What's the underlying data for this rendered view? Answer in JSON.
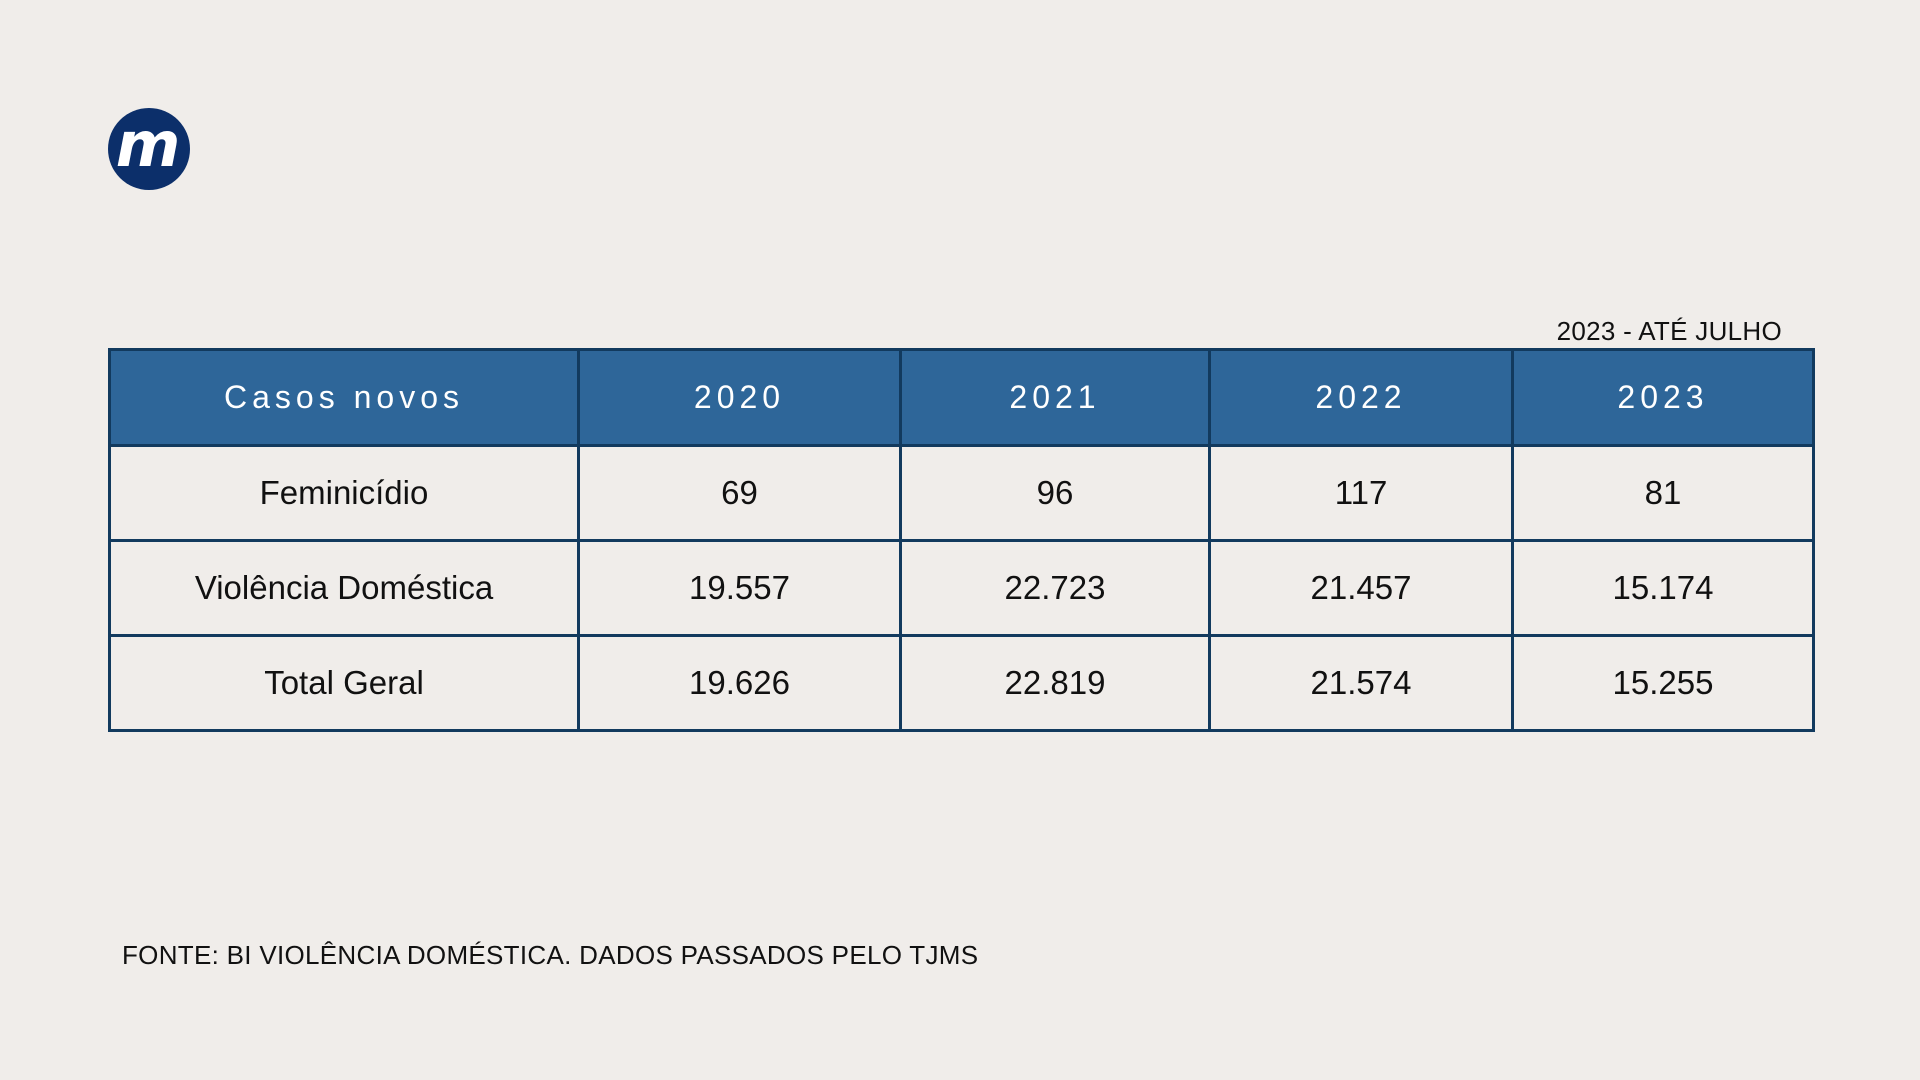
{
  "brand": {
    "logo_letter": "m",
    "logo_color": "#0c2f6a"
  },
  "note": "2023 - ATÉ JULHO",
  "table": {
    "headers": [
      "Casos novos",
      "2020",
      "2021",
      "2022",
      "2023"
    ],
    "rows": [
      {
        "label": "Feminicídio",
        "values": [
          "69",
          "96",
          "117",
          "81"
        ]
      },
      {
        "label": "Violência Doméstica",
        "values": [
          "19.557",
          "22.723",
          "21.457",
          "15.174"
        ]
      },
      {
        "label": "Total Geral",
        "values": [
          "19.626",
          "22.819",
          "21.574",
          "15.255"
        ]
      }
    ],
    "header_color": "#2e6699",
    "border_color": "#123a5e"
  },
  "footer": "FONTE: BI VIOLÊNCIA DOMÉSTICA. DADOS PASSADOS PELO TJMS"
}
